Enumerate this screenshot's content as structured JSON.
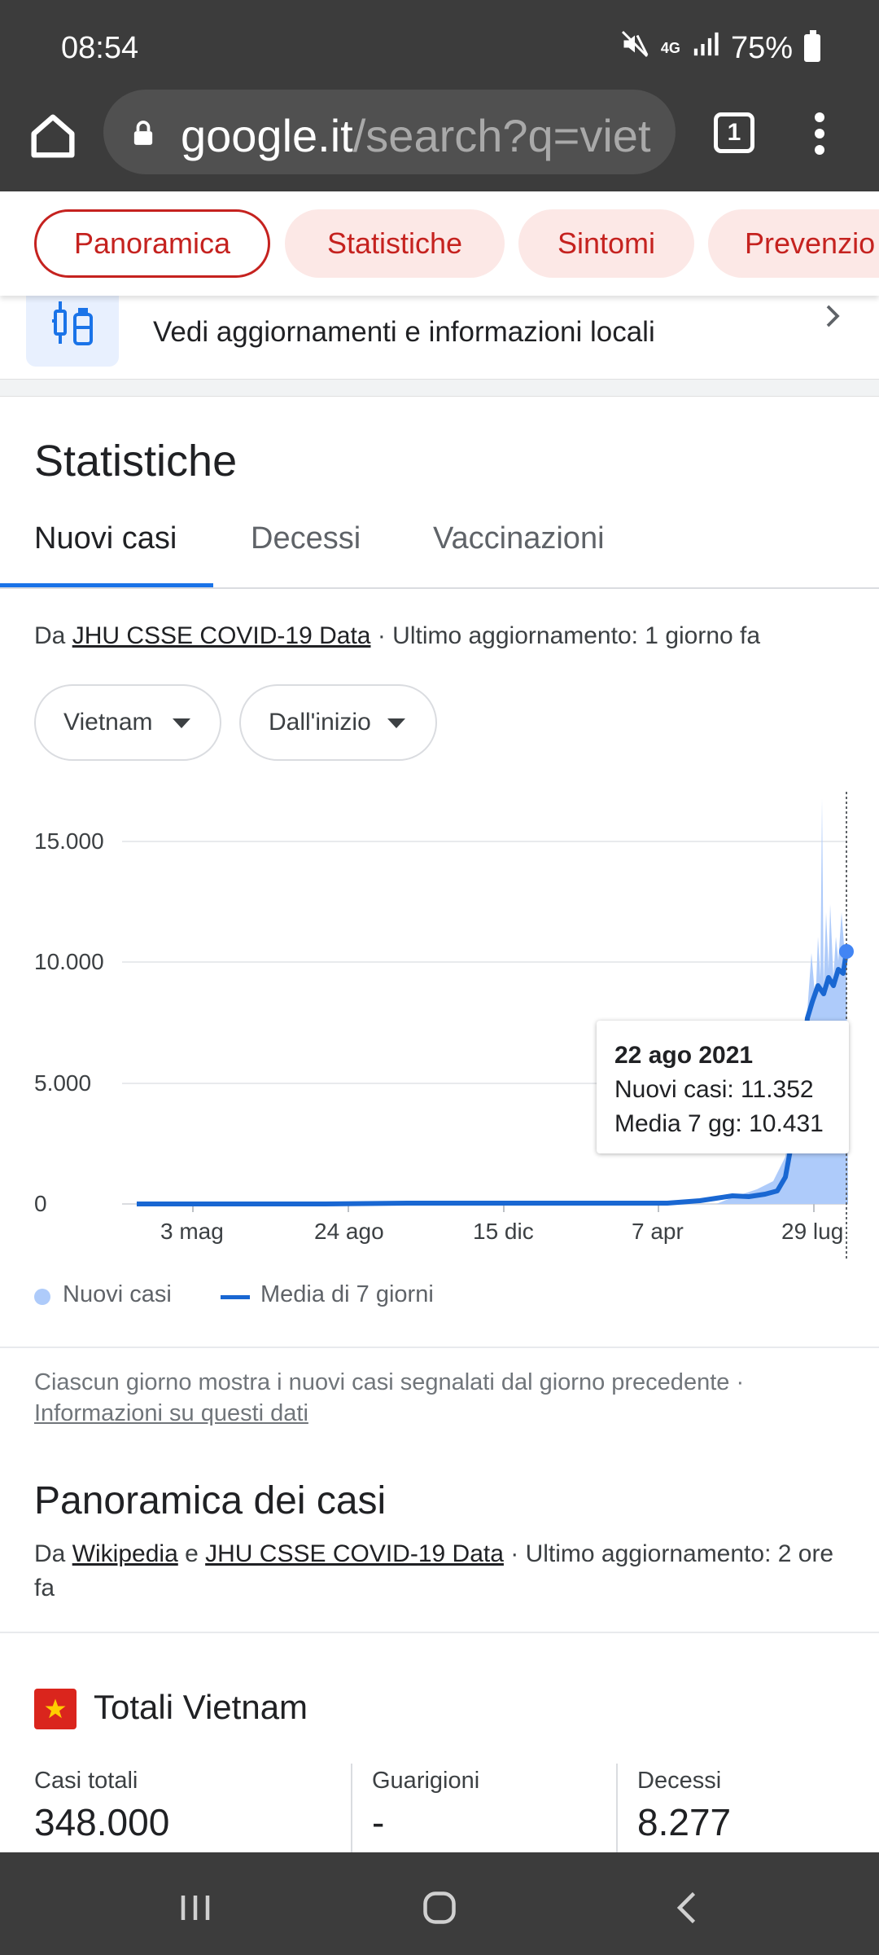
{
  "status_bar": {
    "time": "08:54",
    "network": "4G",
    "battery": "75%"
  },
  "browser": {
    "url_host": "google.it",
    "url_path": "/search?q=vietr",
    "tab_count": "1"
  },
  "chips": [
    {
      "label": "Panoramica",
      "active": true
    },
    {
      "label": "Statistiche",
      "active": false
    },
    {
      "label": "Sintomi",
      "active": false
    },
    {
      "label": "Prevenzio",
      "active": false
    }
  ],
  "local_info": {
    "text": "Vedi aggiornamenti e informazioni locali"
  },
  "stats": {
    "title": "Statistiche",
    "tabs": [
      "Nuovi casi",
      "Decessi",
      "Vaccinazioni"
    ],
    "source_prefix": "Da",
    "source_link": "JHU CSSE COVID-19 Data",
    "source_suffix": "· Ultimo aggiornamento: 1 giorno fa",
    "country_dropdown": "Vietnam",
    "range_dropdown": "Dall'inizio"
  },
  "chart_data": {
    "type": "bar",
    "x_tick_labels": [
      "3 mag",
      "24 ago",
      "15 dic",
      "7 apr",
      "29 lug"
    ],
    "y_tick_labels": [
      "15.000",
      "10.000",
      "5.000",
      "0"
    ],
    "ylim": [
      0,
      17000
    ],
    "series": [
      {
        "name": "Nuovi casi",
        "type": "bar",
        "color": "#aecbfa"
      },
      {
        "name": "Media di 7 giorni",
        "type": "line",
        "color": "#1967d2"
      }
    ],
    "tooltip": {
      "date": "22 ago 2021",
      "new_cases_label": "Nuovi casi: 11.352",
      "avg_label": "Media 7 gg: 10.431"
    },
    "highlight": {
      "new_cases": 11352,
      "avg_7d": 10431
    }
  },
  "footnote": {
    "text": "Ciascun giorno mostra i nuovi casi segnalati dal giorno precedente ·",
    "link": "Informazioni su questi dati"
  },
  "overview": {
    "title": "Panoramica dei casi",
    "source_prefix": "Da",
    "link1": "Wikipedia",
    "and": "e",
    "link2": "JHU CSSE COVID-19 Data",
    "suffix": "· Ultimo aggiornamento: 2 ore fa"
  },
  "totals": {
    "title": "Totali Vietnam",
    "items": [
      {
        "label": "Casi totali",
        "value": "348.000"
      },
      {
        "label": "Guarigioni",
        "value": "-"
      },
      {
        "label": "Decessi",
        "value": "8.277"
      }
    ]
  }
}
